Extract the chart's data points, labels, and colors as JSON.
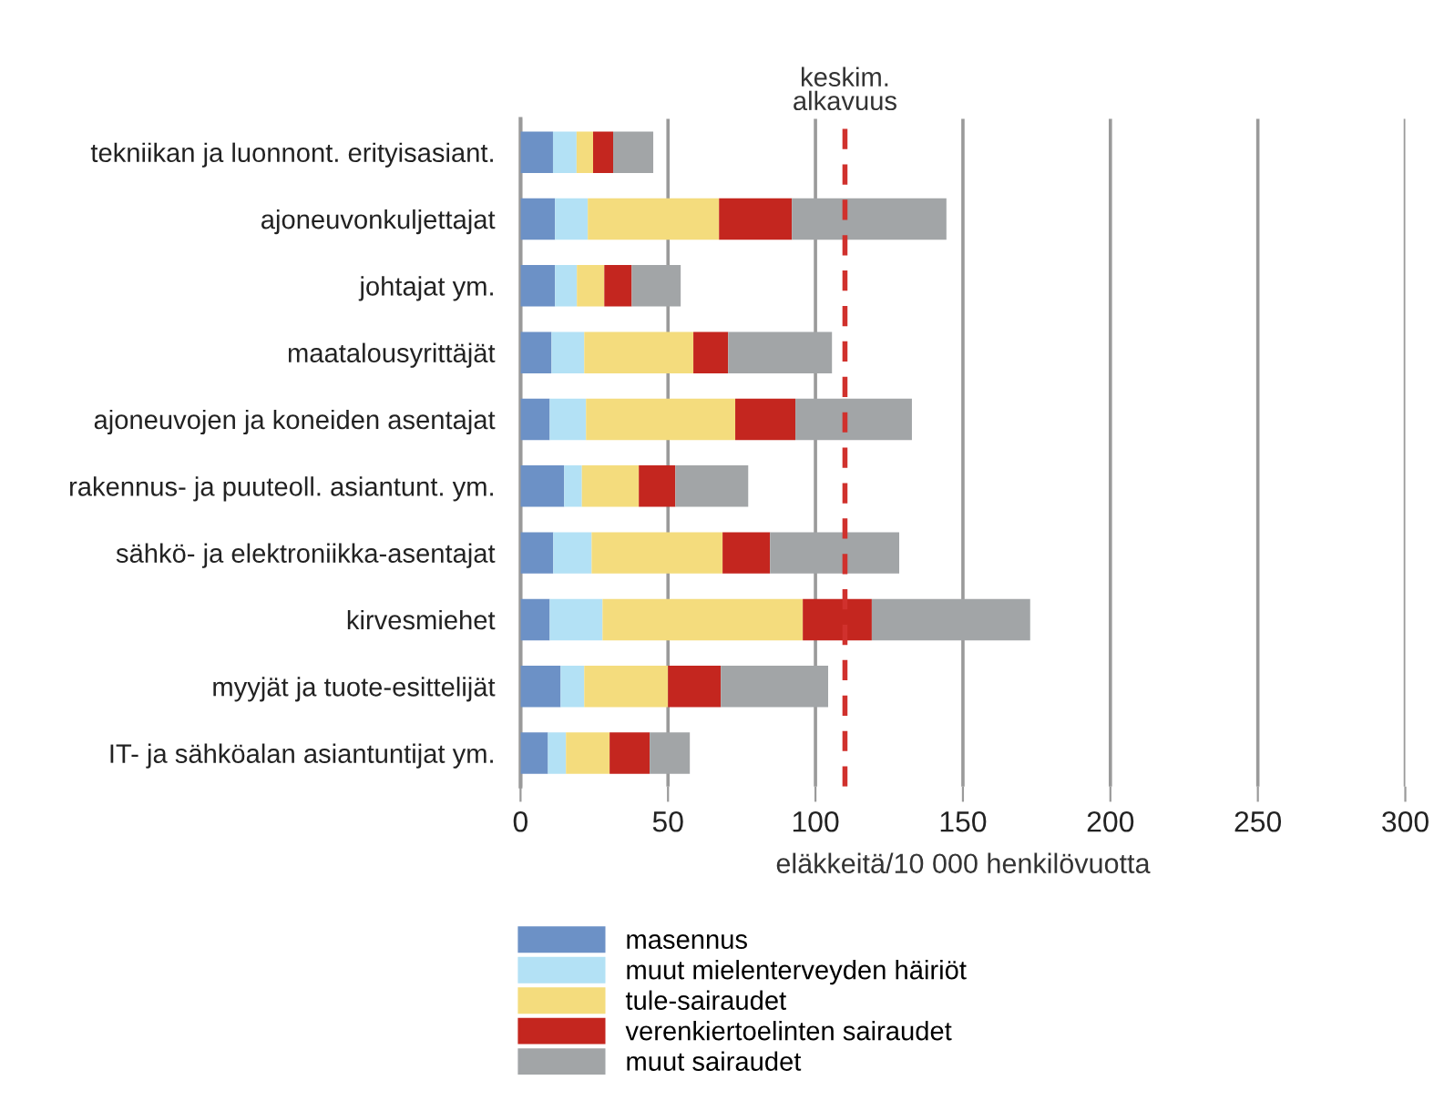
{
  "chart_data": {
    "type": "bar",
    "orientation": "horizontal",
    "stacked": true,
    "xlabel": "eläkkeitä/10 000 henkilövuotta",
    "categories": [
      "tekniikan ja luonnont. erityisasiant.",
      "ajoneuvonkuljettajat",
      "johtajat ym.",
      "maatalousyrittäjät",
      "ajoneuvojen ja koneiden asentajat",
      "rakennus- ja puuteoll. asiantunt. ym.",
      "sähkö- ja elektroniikka-asentajat",
      "kirvesmiehet",
      "myyjät ja tuote-esittelijät",
      "IT- ja sähköalan asiantuntijat ym."
    ],
    "series": [
      {
        "name": "masennus",
        "color": "#6c91c6",
        "values": [
          11,
          11.7,
          11.7,
          10.5,
          9.9,
          14.8,
          11.1,
          9.9,
          13.6,
          9.3
        ]
      },
      {
        "name": "muut mielenterveyden häiriöt",
        "color": "#b3e1f5",
        "values": [
          8,
          11.1,
          7.4,
          11.1,
          12.3,
          6,
          13,
          17.9,
          8,
          6.1
        ]
      },
      {
        "name": "tule-sairaudet",
        "color": "#f4dc7d",
        "values": [
          5.6,
          44.5,
          9.3,
          37,
          50.6,
          19.3,
          44.4,
          67.9,
          28.4,
          14.8
        ]
      },
      {
        "name": "verenkiertoelinten sairaudet",
        "color": "#c4261f",
        "values": [
          6.8,
          24.7,
          9.3,
          11.8,
          20.4,
          12.4,
          16.1,
          23.4,
          17.9,
          13.6
        ]
      },
      {
        "name": "muut sairaudet",
        "color": "#a2a5a7",
        "values": [
          13.6,
          52.4,
          16.6,
          35.2,
          39.5,
          24.7,
          43.8,
          53.7,
          36.4,
          13.6
        ]
      }
    ],
    "xlim": [
      0,
      300
    ],
    "xticks": [
      0,
      50,
      100,
      150,
      200,
      250,
      300
    ],
    "ref_lines": [
      {
        "axis": "x",
        "value": 110,
        "label": "keskim.\nalkavuus",
        "color": "#d0312d",
        "line_style": "dashed"
      }
    ],
    "grid": "x",
    "legend": "bottom left"
  }
}
